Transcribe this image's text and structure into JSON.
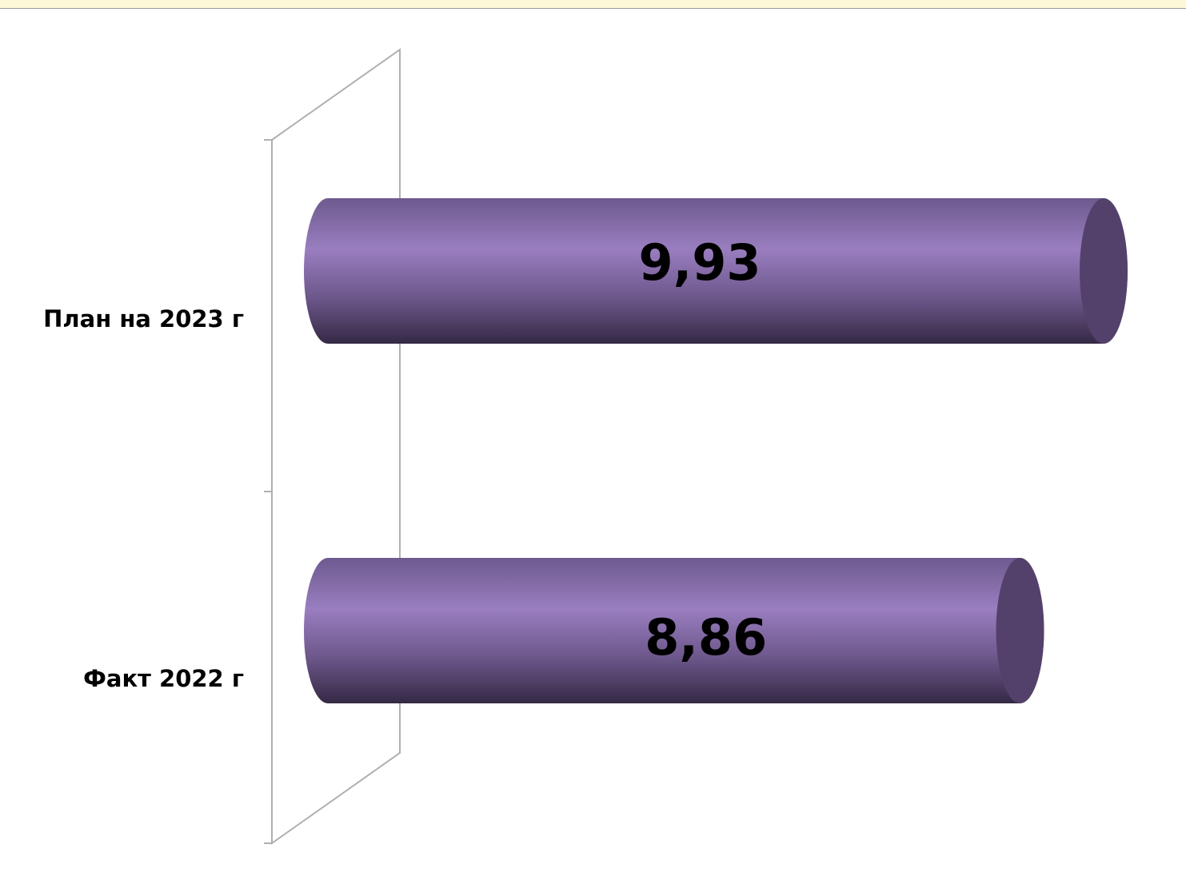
{
  "chart_data": {
    "type": "bar3d",
    "categories": [
      "План на 2023 г",
      "Факт 2022 г"
    ],
    "values": [
      9.93,
      8.86
    ],
    "value_labels": [
      "9,93",
      "8,86"
    ],
    "color": "#8b72b2"
  }
}
